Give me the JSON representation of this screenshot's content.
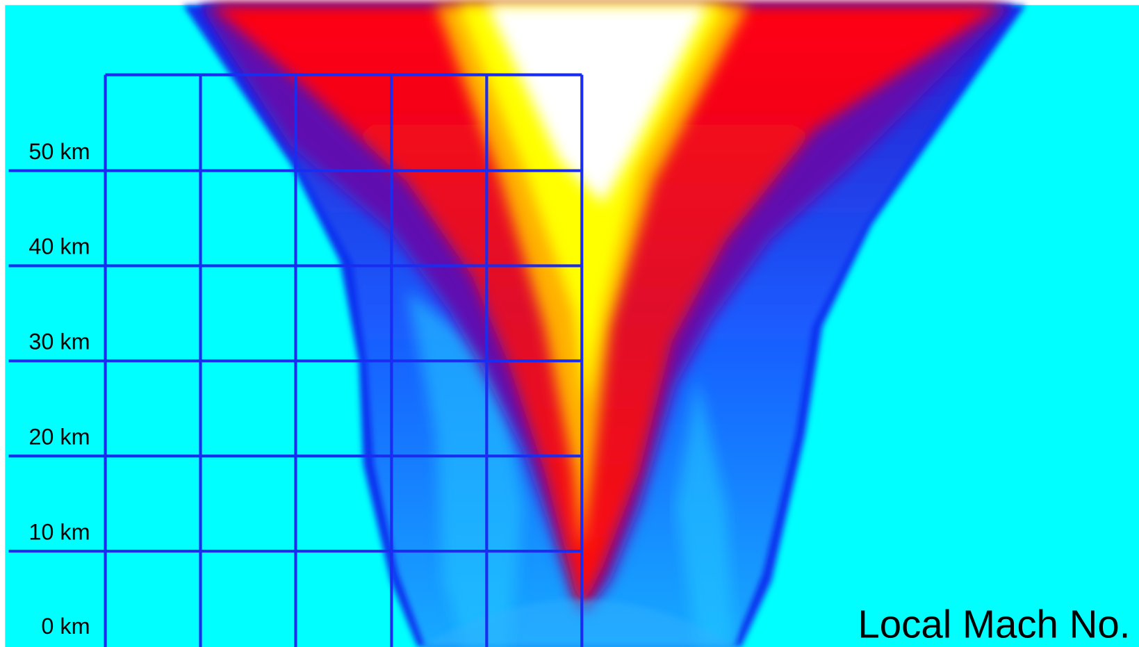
{
  "height_labels": [
    "50 km",
    "40 km",
    "30 km",
    "20 km",
    "10 km",
    "0 km"
  ],
  "caption": "Local Mach No."
}
